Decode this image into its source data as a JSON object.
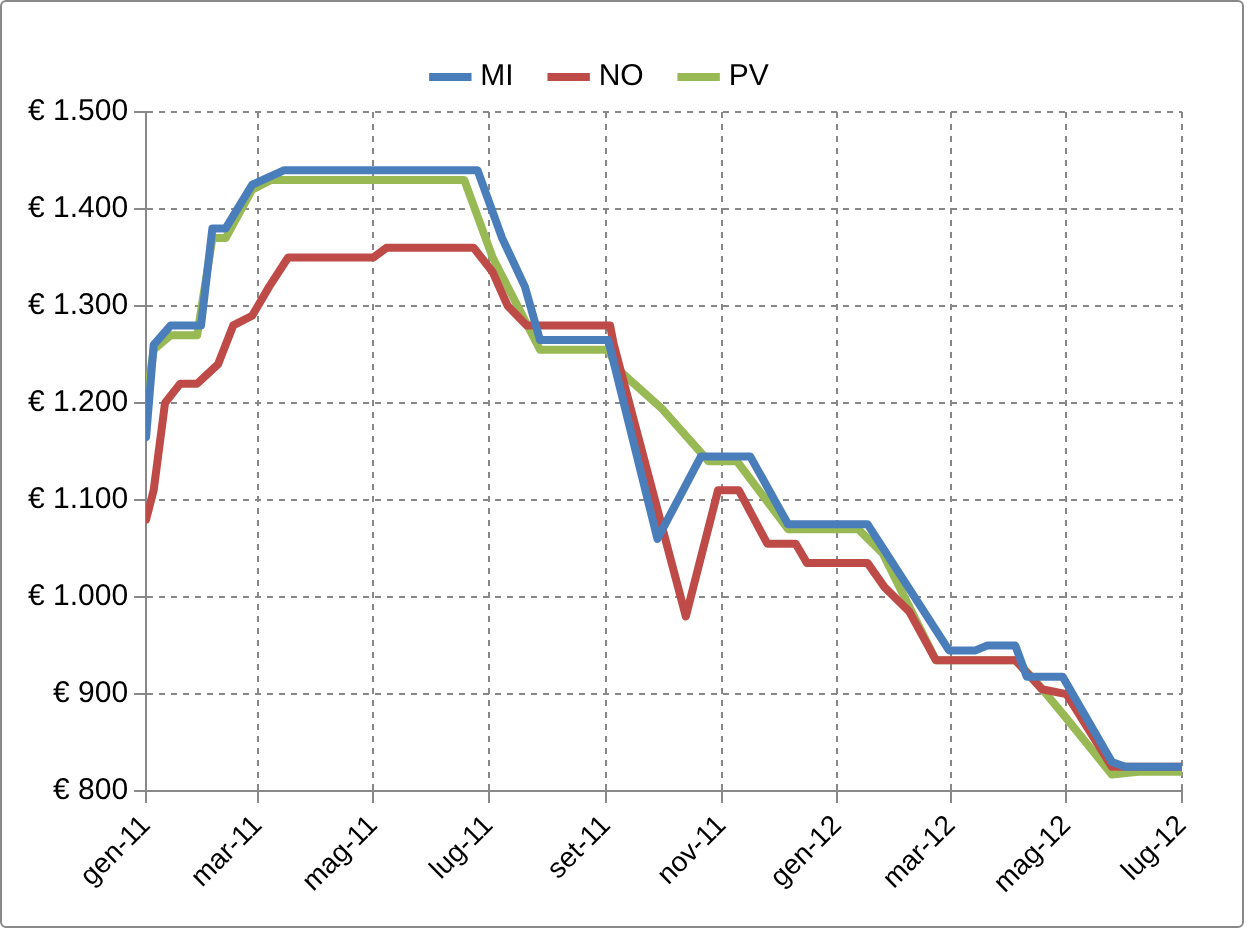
{
  "chart_data": {
    "type": "line",
    "legend": "top",
    "grid": true,
    "marker": "none",
    "line_style": "solid",
    "xlim": [
      "2011-01-01",
      "2012-07-01"
    ],
    "xticks": [
      {
        "value": "2011-01-01",
        "label": "gen-11"
      },
      {
        "value": "2011-03-01",
        "label": "mar-11"
      },
      {
        "value": "2011-05-01",
        "label": "mag-11"
      },
      {
        "value": "2011-07-01",
        "label": "lug-11"
      },
      {
        "value": "2011-09-01",
        "label": "set-11"
      },
      {
        "value": "2011-11-01",
        "label": "nov-11"
      },
      {
        "value": "2012-01-01",
        "label": "gen-12"
      },
      {
        "value": "2012-03-01",
        "label": "mar-12"
      },
      {
        "value": "2012-05-01",
        "label": "mag-12"
      },
      {
        "value": "2012-07-01",
        "label": "lug-12"
      }
    ],
    "ylim": [
      800,
      1500
    ],
    "yticks": [
      {
        "value": 800,
        "label": "€ 800"
      },
      {
        "value": 900,
        "label": "€ 900"
      },
      {
        "value": 1000,
        "label": "€ 1.000"
      },
      {
        "value": 1100,
        "label": "€ 1.100"
      },
      {
        "value": 1200,
        "label": "€ 1.200"
      },
      {
        "value": 1300,
        "label": "€ 1.300"
      },
      {
        "value": 1400,
        "label": "€ 1.400"
      },
      {
        "value": 1500,
        "label": "€ 1.500"
      }
    ],
    "series": [
      {
        "name": "MI",
        "color": "#4a7ebb",
        "x": [
          "2011-01-01",
          "2011-01-05",
          "2011-01-14",
          "2011-01-30",
          "2011-02-05",
          "2011-02-12",
          "2011-02-26",
          "2011-03-15",
          "2011-06-25",
          "2011-07-08",
          "2011-07-20",
          "2011-07-28",
          "2011-09-02",
          "2011-09-28",
          "2011-10-21",
          "2011-11-16",
          "2011-12-06",
          "2012-01-17",
          "2012-02-29",
          "2012-03-14",
          "2012-03-20",
          "2012-04-04",
          "2012-04-10",
          "2012-04-29",
          "2012-05-25",
          "2012-06-01",
          "2012-07-01"
        ],
        "values": [
          1165,
          1260,
          1280,
          1280,
          1380,
          1380,
          1425,
          1440,
          1440,
          1370,
          1320,
          1265,
          1265,
          1060,
          1145,
          1145,
          1075,
          1075,
          945,
          945,
          950,
          950,
          918,
          918,
          830,
          825,
          825
        ]
      },
      {
        "name": "NO",
        "color": "#be4b48",
        "x": [
          "2011-01-01",
          "2011-01-05",
          "2011-01-11",
          "2011-01-19",
          "2011-01-28",
          "2011-02-08",
          "2011-02-16",
          "2011-02-26",
          "2011-03-07",
          "2011-03-17",
          "2011-05-01",
          "2011-05-08",
          "2011-06-23",
          "2011-07-03",
          "2011-07-11",
          "2011-07-21",
          "2011-09-03",
          "2011-09-05",
          "2011-10-13",
          "2011-10-30",
          "2011-11-10",
          "2011-11-25",
          "2011-12-10",
          "2011-12-16",
          "2012-01-17",
          "2012-01-26",
          "2012-02-08",
          "2012-02-22",
          "2012-04-04",
          "2012-04-18",
          "2012-05-01",
          "2012-05-25",
          "2012-07-01"
        ],
        "values": [
          1080,
          1110,
          1200,
          1220,
          1220,
          1240,
          1280,
          1290,
          1320,
          1350,
          1350,
          1360,
          1360,
          1335,
          1300,
          1280,
          1280,
          1260,
          980,
          1110,
          1110,
          1055,
          1055,
          1035,
          1035,
          1010,
          985,
          935,
          935,
          905,
          900,
          825,
          825
        ]
      },
      {
        "name": "PV",
        "color": "#98b954",
        "x": [
          "2011-01-01",
          "2011-01-05",
          "2011-01-14",
          "2011-01-28",
          "2011-02-05",
          "2011-02-12",
          "2011-02-26",
          "2011-03-08",
          "2011-06-18",
          "2011-07-03",
          "2011-07-28",
          "2011-09-02",
          "2011-09-07",
          "2011-09-30",
          "2011-10-25",
          "2011-11-09",
          "2011-12-06",
          "2012-01-12",
          "2012-01-25",
          "2012-02-22",
          "2012-04-04",
          "2012-04-14",
          "2012-05-01",
          "2012-05-25",
          "2012-06-08",
          "2012-07-01"
        ],
        "values": [
          1200,
          1255,
          1270,
          1270,
          1370,
          1370,
          1420,
          1430,
          1430,
          1350,
          1255,
          1255,
          1235,
          1195,
          1140,
          1140,
          1070,
          1070,
          1045,
          935,
          935,
          915,
          875,
          817,
          820,
          820
        ]
      }
    ]
  }
}
